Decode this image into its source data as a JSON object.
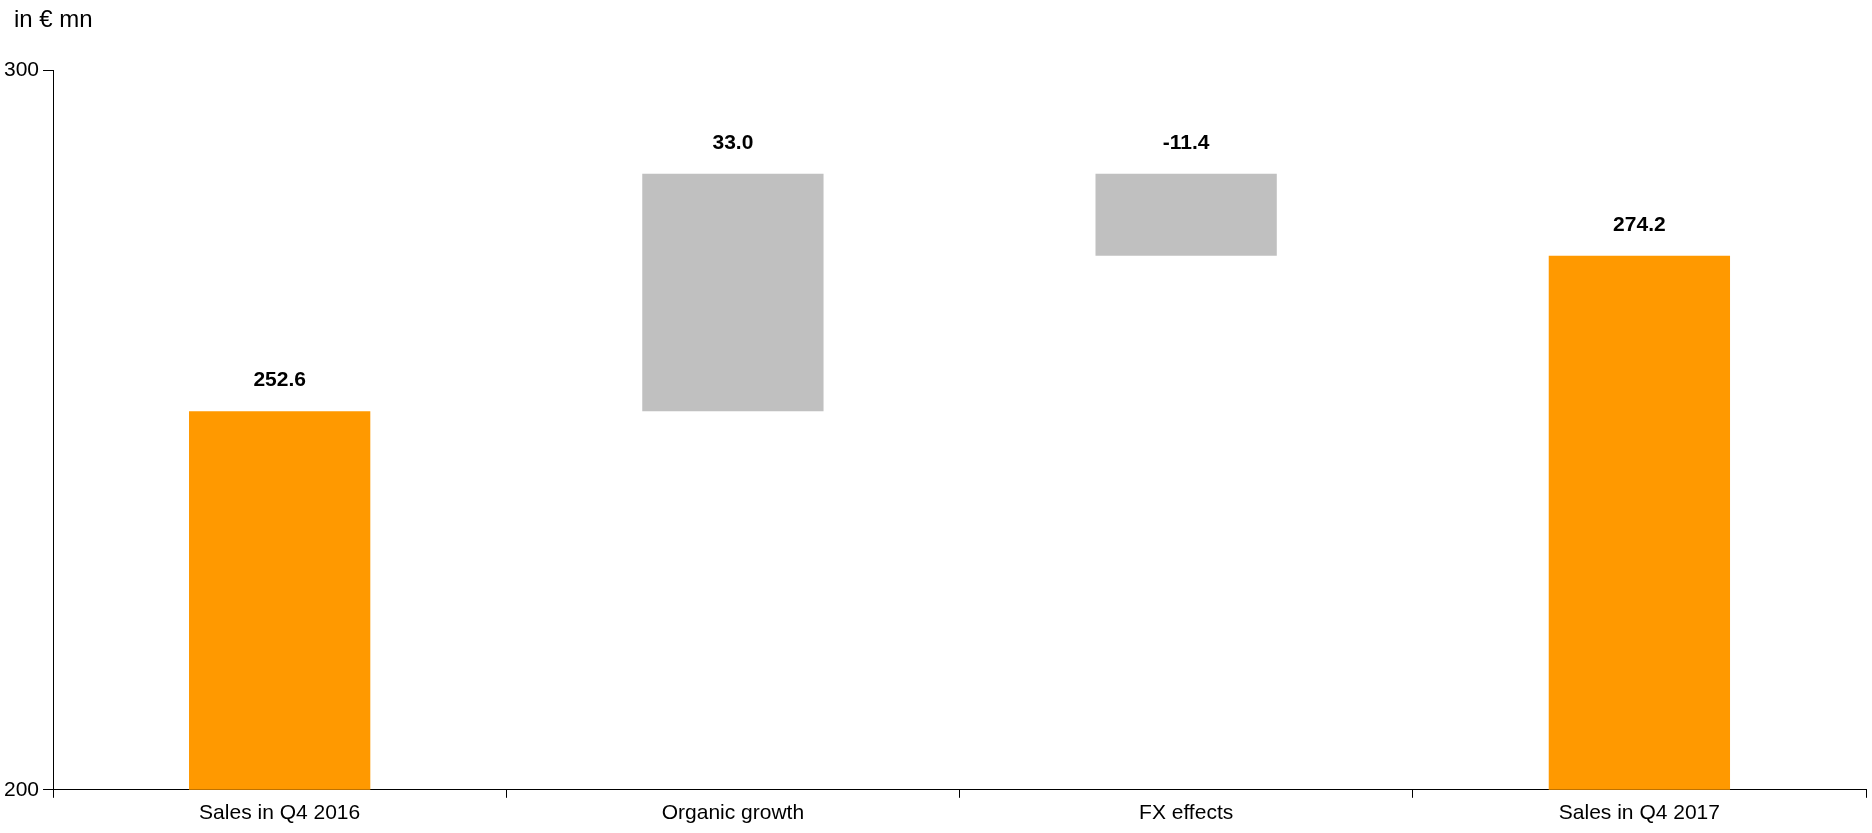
{
  "chart_data": {
    "type": "bar",
    "ylabel": "in € mn",
    "categories": [
      "Sales in Q4 2016",
      "Organic growth",
      "FX effects",
      "Sales in Q4 2017"
    ],
    "values": [
      252.6,
      33.0,
      -11.4,
      274.2
    ],
    "base": [
      null,
      252.6,
      285.6,
      null
    ],
    "colors": [
      "#ff9900",
      "#c0c0c0",
      "#c0c0c0",
      "#ff9900"
    ],
    "value_labels": [
      "252.6",
      "33.0",
      "-11.4",
      "274.2"
    ],
    "ylim": [
      200,
      300
    ],
    "yticks": [
      200,
      300
    ],
    "grid": false,
    "legend": false
  }
}
